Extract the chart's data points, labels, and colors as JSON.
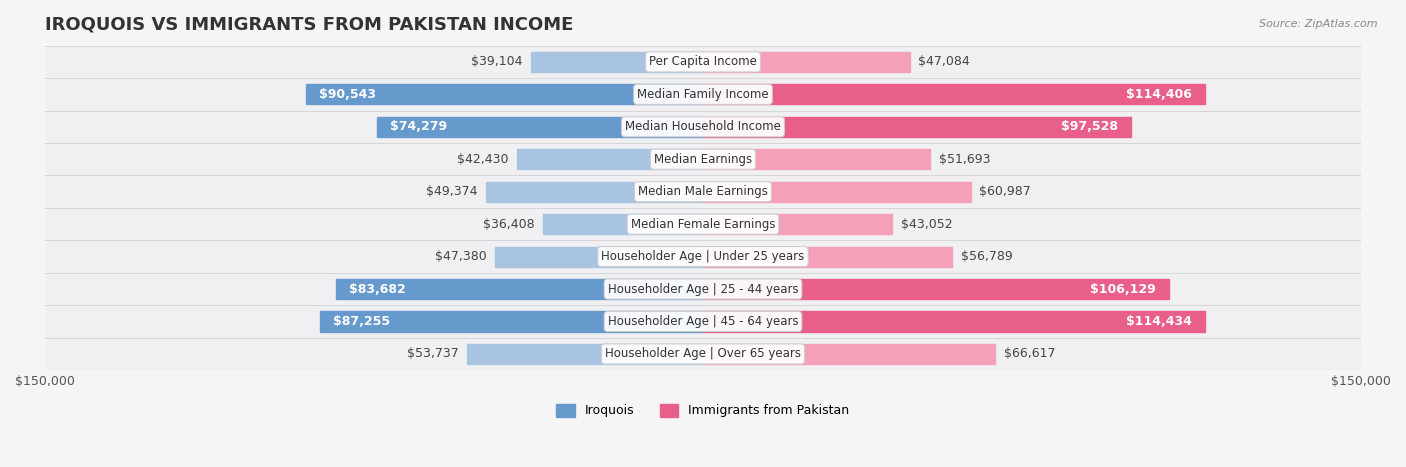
{
  "title": "IROQUOIS VS IMMIGRANTS FROM PAKISTAN INCOME",
  "source": "Source: ZipAtlas.com",
  "categories": [
    "Per Capita Income",
    "Median Family Income",
    "Median Household Income",
    "Median Earnings",
    "Median Male Earnings",
    "Median Female Earnings",
    "Householder Age | Under 25 years",
    "Householder Age | 25 - 44 years",
    "Householder Age | 45 - 64 years",
    "Householder Age | Over 65 years"
  ],
  "iroquois_values": [
    39104,
    90543,
    74279,
    42430,
    49374,
    36408,
    47380,
    83682,
    87255,
    53737
  ],
  "pakistan_values": [
    47084,
    114406,
    97528,
    51693,
    60987,
    43052,
    56789,
    106129,
    114434,
    66617
  ],
  "iroquois_labels": [
    "$39,104",
    "$90,543",
    "$74,279",
    "$42,430",
    "$49,374",
    "$36,408",
    "$47,380",
    "$83,682",
    "$87,255",
    "$53,737"
  ],
  "pakistan_labels": [
    "$47,084",
    "$114,406",
    "$97,528",
    "$51,693",
    "$60,987",
    "$43,052",
    "$56,789",
    "$106,129",
    "$114,434",
    "$66,617"
  ],
  "max_value": 150000,
  "iroquois_color_light": "#a8c4e0",
  "iroquois_color_dark": "#6699cc",
  "pakistan_color_light": "#f4a0b8",
  "pakistan_color_dark": "#e8608a",
  "iroquois_dark_threshold": 60000,
  "pakistan_dark_threshold": 90000,
  "bg_color": "#f5f5f5",
  "row_bg_color": "#ffffff",
  "row_alt_bg": "#f0f0f0",
  "label_fontsize": 9,
  "category_fontsize": 8.5,
  "title_fontsize": 13
}
